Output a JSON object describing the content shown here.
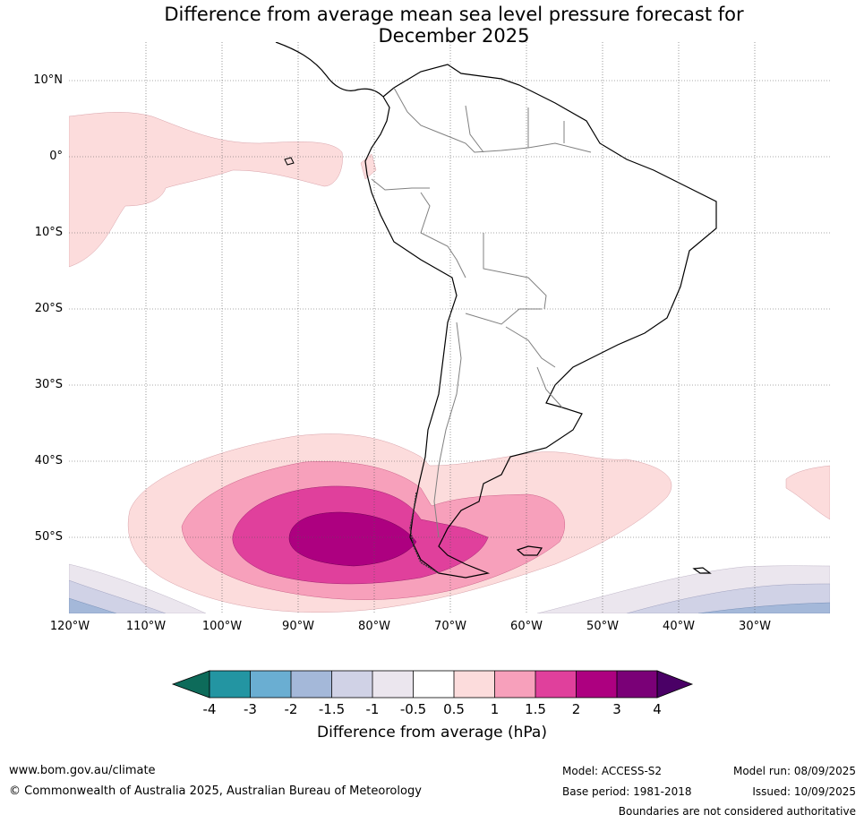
{
  "title": {
    "line1": "Difference from average mean sea level pressure forecast for",
    "line2": "December 2025"
  },
  "map": {
    "latitude_labels": [
      "10°N",
      "0°",
      "10°S",
      "20°S",
      "30°S",
      "40°S",
      "50°S"
    ],
    "longitude_labels": [
      "120°W",
      "110°W",
      "100°W",
      "90°W",
      "80°W",
      "70°W",
      "60°W",
      "50°W",
      "40°W",
      "30°W"
    ],
    "colors": {
      "ocean": "#ffffff",
      "land_outline": "#000000",
      "borders": "#808080",
      "grid": "#555555"
    }
  },
  "colorbar": {
    "title": "Difference from average (hPa)",
    "ticks": [
      "-4",
      "-3",
      "-2",
      "-1.5",
      "-1",
      "-0.5",
      "0.5",
      "1",
      "1.5",
      "2",
      "3",
      "4"
    ],
    "colors": [
      "#0d6b5a",
      "#2395a2",
      "#6aaed2",
      "#a4b8d9",
      "#d0d2e6",
      "#ebe6ee",
      "#ffffff",
      "#fcdcdc",
      "#f7a0bb",
      "#e0409c",
      "#ad0080",
      "#7a0077",
      "#4a0066"
    ]
  },
  "footer": {
    "website": "www.bom.gov.au/climate",
    "copyright": "© Commonwealth of Australia 2025, Australian Bureau of Meteorology",
    "model": "Model: ACCESS-S2",
    "base_period": "Base period: 1981-2018",
    "model_run": "Model run: 08/09/2025",
    "issued": "Issued: 10/09/2025",
    "disclaimer": "Boundaries are not considered authoritative"
  }
}
